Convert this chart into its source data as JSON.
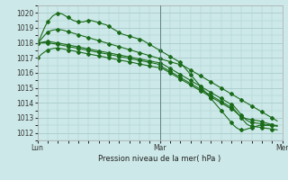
{
  "title": "Pression niveau de la mer( hPa )",
  "bg_color": "#cce8e8",
  "grid_color": "#aacccc",
  "line_color": "#1a6b1a",
  "ylim": [
    1011.5,
    1020.5
  ],
  "yticks": [
    1012,
    1013,
    1014,
    1015,
    1016,
    1017,
    1018,
    1019,
    1020
  ],
  "xlim": [
    0,
    96
  ],
  "xtick_positions": [
    0,
    48,
    96
  ],
  "xtick_labels": [
    "Lun",
    "Mar",
    "Mer"
  ],
  "vlines": [
    48,
    96
  ],
  "series": [
    [
      1018.0,
      1018.3,
      1018.7,
      1019.1,
      1019.4,
      1019.6,
      1019.8,
      1019.9,
      1019.97,
      1019.97,
      1019.9,
      1019.8,
      1019.7,
      1019.6,
      1019.5,
      1019.45,
      1019.4,
      1019.4,
      1019.4,
      1019.45,
      1019.5,
      1019.5,
      1019.45,
      1019.4,
      1019.35,
      1019.3,
      1019.25,
      1019.2,
      1019.1,
      1019.0,
      1018.9,
      1018.8,
      1018.7,
      1018.6,
      1018.55,
      1018.5,
      1018.45,
      1018.4,
      1018.35,
      1018.3,
      1018.25,
      1018.2,
      1018.1,
      1018.0,
      1017.9,
      1017.8,
      1017.7,
      1017.6,
      1017.5,
      1017.4,
      1017.3,
      1017.2,
      1017.1,
      1017.0,
      1016.9,
      1016.8,
      1016.7,
      1016.5,
      1016.3,
      1016.1,
      1015.9,
      1015.7,
      1015.5,
      1015.3,
      1015.1,
      1014.9,
      1014.7,
      1014.5,
      1014.3,
      1014.1,
      1013.9,
      1013.7,
      1013.5,
      1013.3,
      1013.1,
      1012.9,
      1012.7,
      1012.5,
      1012.35,
      1012.25,
      1012.2,
      1012.2,
      1012.25,
      1012.3,
      1012.35,
      1012.4,
      1012.45,
      1012.5,
      1012.5,
      1012.5,
      1012.5,
      1012.5,
      1012.5,
      1012.5,
      1012.5
    ],
    [
      1018.0,
      1018.15,
      1018.35,
      1018.55,
      1018.7,
      1018.8,
      1018.85,
      1018.88,
      1018.9,
      1018.88,
      1018.85,
      1018.8,
      1018.75,
      1018.7,
      1018.65,
      1018.6,
      1018.55,
      1018.5,
      1018.45,
      1018.4,
      1018.35,
      1018.3,
      1018.25,
      1018.2,
      1018.15,
      1018.1,
      1018.05,
      1018.0,
      1017.95,
      1017.9,
      1017.85,
      1017.8,
      1017.75,
      1017.7,
      1017.65,
      1017.6,
      1017.55,
      1017.5,
      1017.45,
      1017.4,
      1017.35,
      1017.3,
      1017.25,
      1017.2,
      1017.15,
      1017.1,
      1017.05,
      1017.0,
      1016.95,
      1016.9,
      1016.85,
      1016.8,
      1016.75,
      1016.7,
      1016.65,
      1016.6,
      1016.55,
      1016.5,
      1016.4,
      1016.3,
      1016.2,
      1016.1,
      1016.0,
      1015.9,
      1015.8,
      1015.7,
      1015.6,
      1015.5,
      1015.4,
      1015.3,
      1015.2,
      1015.1,
      1015.0,
      1014.9,
      1014.8,
      1014.7,
      1014.6,
      1014.5,
      1014.4,
      1014.3,
      1014.2,
      1014.1,
      1014.0,
      1013.9,
      1013.8,
      1013.7,
      1013.6,
      1013.5,
      1013.4,
      1013.3,
      1013.2,
      1013.1,
      1013.0,
      1012.9,
      1012.8
    ],
    [
      1017.0,
      1017.15,
      1017.3,
      1017.42,
      1017.52,
      1017.58,
      1017.62,
      1017.65,
      1017.65,
      1017.63,
      1017.6,
      1017.57,
      1017.53,
      1017.5,
      1017.47,
      1017.43,
      1017.4,
      1017.37,
      1017.33,
      1017.3,
      1017.27,
      1017.23,
      1017.2,
      1017.17,
      1017.13,
      1017.1,
      1017.07,
      1017.03,
      1017.0,
      1016.97,
      1016.93,
      1016.9,
      1016.87,
      1016.83,
      1016.8,
      1016.77,
      1016.73,
      1016.7,
      1016.67,
      1016.63,
      1016.6,
      1016.57,
      1016.53,
      1016.5,
      1016.47,
      1016.43,
      1016.4,
      1016.37,
      1016.33,
      1016.3,
      1016.2,
      1016.1,
      1016.0,
      1015.9,
      1015.8,
      1015.7,
      1015.6,
      1015.5,
      1015.4,
      1015.3,
      1015.2,
      1015.1,
      1015.0,
      1014.9,
      1014.8,
      1014.7,
      1014.6,
      1014.5,
      1014.4,
      1014.3,
      1014.2,
      1014.1,
      1014.0,
      1013.9,
      1013.8,
      1013.7,
      1013.6,
      1013.5,
      1013.35,
      1013.2,
      1013.1,
      1013.0,
      1012.95,
      1012.9,
      1012.88,
      1012.85,
      1012.83,
      1012.8,
      1012.75,
      1012.7,
      1012.65,
      1012.6,
      1012.55,
      1012.5,
      1012.45
    ],
    [
      1018.0,
      1018.02,
      1018.05,
      1018.08,
      1018.1,
      1018.08,
      1018.05,
      1018.02,
      1018.0,
      1017.97,
      1017.93,
      1017.9,
      1017.87,
      1017.83,
      1017.8,
      1017.77,
      1017.73,
      1017.7,
      1017.67,
      1017.63,
      1017.6,
      1017.57,
      1017.53,
      1017.5,
      1017.47,
      1017.43,
      1017.4,
      1017.37,
      1017.33,
      1017.3,
      1017.27,
      1017.23,
      1017.2,
      1017.17,
      1017.13,
      1017.1,
      1017.07,
      1017.03,
      1017.0,
      1016.97,
      1016.93,
      1016.9,
      1016.87,
      1016.83,
      1016.8,
      1016.77,
      1016.73,
      1016.7,
      1016.67,
      1016.6,
      1016.5,
      1016.4,
      1016.3,
      1016.2,
      1016.1,
      1016.0,
      1015.9,
      1015.8,
      1015.7,
      1015.6,
      1015.5,
      1015.4,
      1015.3,
      1015.2,
      1015.1,
      1015.0,
      1014.9,
      1014.8,
      1014.7,
      1014.6,
      1014.5,
      1014.4,
      1014.3,
      1014.2,
      1014.1,
      1014.0,
      1013.9,
      1013.8,
      1013.6,
      1013.4,
      1013.2,
      1013.0,
      1012.85,
      1012.75,
      1012.7,
      1012.68,
      1012.65,
      1012.63,
      1012.6,
      1012.58,
      1012.55,
      1012.53,
      1012.5,
      1012.48,
      1012.45
    ],
    [
      1018.0,
      1018.0,
      1018.0,
      1018.0,
      1018.0,
      1017.98,
      1017.95,
      1017.93,
      1017.9,
      1017.87,
      1017.83,
      1017.8,
      1017.77,
      1017.73,
      1017.7,
      1017.67,
      1017.63,
      1017.6,
      1017.57,
      1017.53,
      1017.5,
      1017.47,
      1017.43,
      1017.4,
      1017.37,
      1017.33,
      1017.3,
      1017.27,
      1017.23,
      1017.2,
      1017.17,
      1017.13,
      1017.1,
      1017.07,
      1017.03,
      1017.0,
      1016.97,
      1016.93,
      1016.9,
      1016.87,
      1016.83,
      1016.8,
      1016.77,
      1016.73,
      1016.7,
      1016.67,
      1016.63,
      1016.6,
      1016.5,
      1016.4,
      1016.3,
      1016.2,
      1016.1,
      1016.0,
      1015.9,
      1015.8,
      1015.7,
      1015.6,
      1015.5,
      1015.4,
      1015.3,
      1015.2,
      1015.1,
      1015.0,
      1014.9,
      1014.8,
      1014.7,
      1014.6,
      1014.5,
      1014.4,
      1014.3,
      1014.2,
      1014.1,
      1014.0,
      1013.9,
      1013.8,
      1013.7,
      1013.6,
      1013.4,
      1013.2,
      1013.0,
      1012.8,
      1012.6,
      1012.5,
      1012.45,
      1012.43,
      1012.4,
      1012.38,
      1012.35,
      1012.33,
      1012.3,
      1012.28,
      1012.25,
      1012.23,
      1012.2
    ]
  ]
}
